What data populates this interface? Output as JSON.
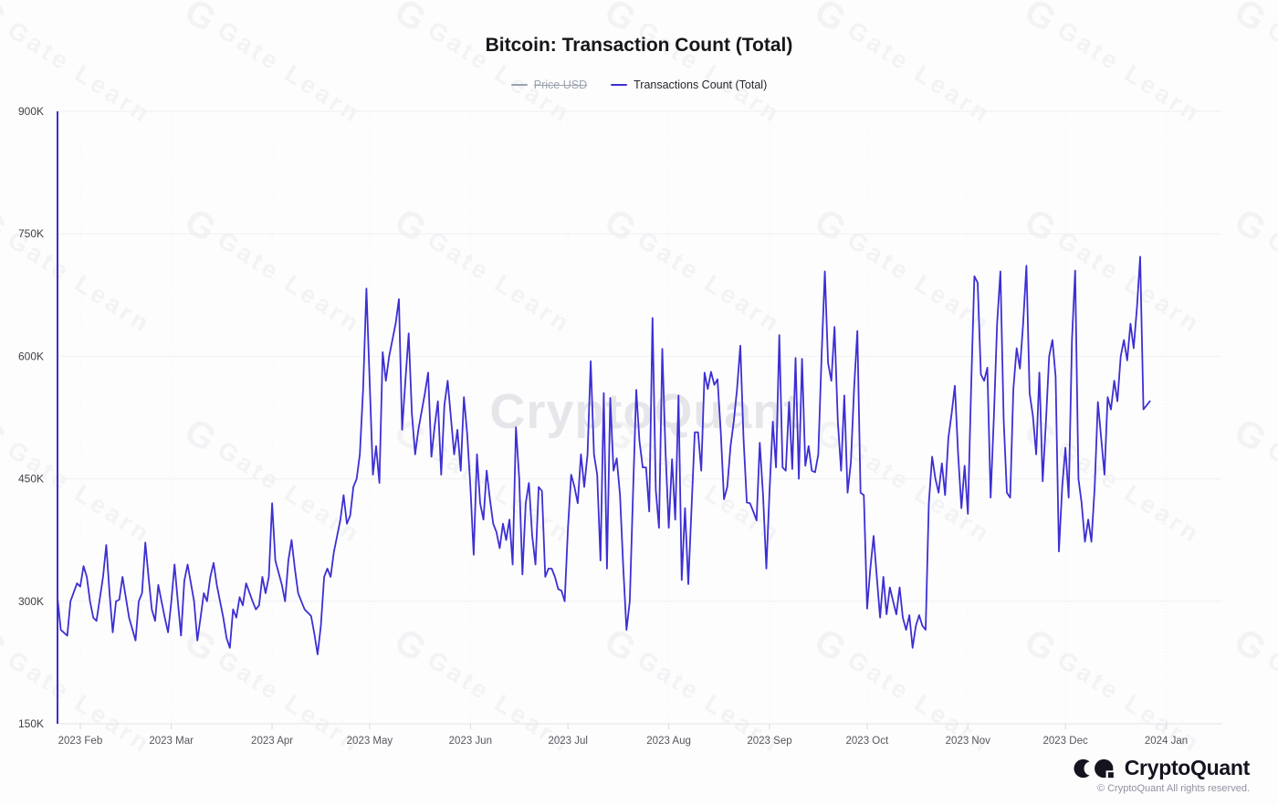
{
  "title": "Bitcoin: Transaction Count (Total)",
  "legend": {
    "price_usd": {
      "label": "Price USD",
      "color": "#9ca3af",
      "disabled": true
    },
    "tx_count": {
      "label": "Transactions Count (Total)",
      "color": "#3d2fd2",
      "disabled": false
    }
  },
  "watermark": {
    "tile_logo": "G",
    "tile_text": "Gate Learn",
    "center_text": "CryptoQuant"
  },
  "footer": {
    "brand": "CryptoQuant",
    "copyright": "© CryptoQuant All rights reserved."
  },
  "chart_data": {
    "type": "line",
    "title": "Bitcoin: Transaction Count (Total)",
    "series_name": "Transactions Count (Total)",
    "line_color": "#3d2fd2",
    "background": "#fdfdfe",
    "grid": true,
    "legend_position": "top",
    "x_unit": "days since 2023-01-25",
    "y_unit": "transactions, thousands (K)",
    "ylim": [
      150,
      900
    ],
    "y_ticks": [
      {
        "label": "150K",
        "value": 150
      },
      {
        "label": "300K",
        "value": 300
      },
      {
        "label": "450K",
        "value": 450
      },
      {
        "label": "600K",
        "value": 600
      },
      {
        "label": "750K",
        "value": 750
      },
      {
        "label": "900K",
        "value": 900
      }
    ],
    "x_ticks": [
      {
        "label": "2023 Feb",
        "day": 7
      },
      {
        "label": "2023 Mar",
        "day": 35
      },
      {
        "label": "2023 Apr",
        "day": 66
      },
      {
        "label": "2023 May",
        "day": 96
      },
      {
        "label": "2023 Jun",
        "day": 127
      },
      {
        "label": "2023 Jul",
        "day": 157
      },
      {
        "label": "2023 Aug",
        "day": 188
      },
      {
        "label": "2023 Sep",
        "day": 219
      },
      {
        "label": "2023 Oct",
        "day": 249
      },
      {
        "label": "2023 Nov",
        "day": 280
      },
      {
        "label": "2023 Dec",
        "day": 310
      },
      {
        "label": "2024 Jan",
        "day": 341
      }
    ],
    "start_spike": {
      "day": 0,
      "from": 900,
      "to": 150
    },
    "points": [
      [
        0,
        304
      ],
      [
        1,
        265
      ],
      [
        3,
        258
      ],
      [
        4,
        300
      ],
      [
        6,
        322
      ],
      [
        7,
        318
      ],
      [
        8,
        343
      ],
      [
        9,
        330
      ],
      [
        10,
        300
      ],
      [
        11,
        280
      ],
      [
        12,
        276
      ],
      [
        14,
        330
      ],
      [
        15,
        369
      ],
      [
        16,
        310
      ],
      [
        17,
        262
      ],
      [
        18,
        300
      ],
      [
        19,
        302
      ],
      [
        20,
        330
      ],
      [
        21,
        305
      ],
      [
        22,
        280
      ],
      [
        24,
        252
      ],
      [
        25,
        300
      ],
      [
        26,
        310
      ],
      [
        27,
        372
      ],
      [
        28,
        330
      ],
      [
        29,
        290
      ],
      [
        30,
        276
      ],
      [
        31,
        320
      ],
      [
        33,
        280
      ],
      [
        34,
        262
      ],
      [
        35,
        300
      ],
      [
        36,
        345
      ],
      [
        37,
        300
      ],
      [
        38,
        258
      ],
      [
        39,
        325
      ],
      [
        40,
        345
      ],
      [
        42,
        300
      ],
      [
        43,
        252
      ],
      [
        44,
        280
      ],
      [
        45,
        310
      ],
      [
        46,
        300
      ],
      [
        47,
        330
      ],
      [
        48,
        347
      ],
      [
        49,
        320
      ],
      [
        51,
        280
      ],
      [
        52,
        255
      ],
      [
        53,
        243
      ],
      [
        54,
        290
      ],
      [
        55,
        280
      ],
      [
        56,
        305
      ],
      [
        57,
        295
      ],
      [
        58,
        322
      ],
      [
        60,
        300
      ],
      [
        61,
        290
      ],
      [
        62,
        295
      ],
      [
        63,
        330
      ],
      [
        64,
        310
      ],
      [
        65,
        330
      ],
      [
        66,
        420
      ],
      [
        67,
        350
      ],
      [
        69,
        320
      ],
      [
        70,
        300
      ],
      [
        71,
        350
      ],
      [
        72,
        375
      ],
      [
        73,
        340
      ],
      [
        74,
        310
      ],
      [
        75,
        300
      ],
      [
        76,
        290
      ],
      [
        78,
        282
      ],
      [
        79,
        260
      ],
      [
        80,
        235
      ],
      [
        81,
        270
      ],
      [
        82,
        330
      ],
      [
        83,
        340
      ],
      [
        84,
        330
      ],
      [
        85,
        360
      ],
      [
        87,
        400
      ],
      [
        88,
        430
      ],
      [
        89,
        395
      ],
      [
        90,
        405
      ],
      [
        91,
        440
      ],
      [
        92,
        450
      ],
      [
        93,
        480
      ],
      [
        94,
        560
      ],
      [
        95,
        683
      ],
      [
        97,
        455
      ],
      [
        98,
        490
      ],
      [
        99,
        445
      ],
      [
        100,
        605
      ],
      [
        101,
        570
      ],
      [
        102,
        600
      ],
      [
        104,
        640
      ],
      [
        105,
        670
      ],
      [
        106,
        510
      ],
      [
        107,
        570
      ],
      [
        108,
        628
      ],
      [
        109,
        530
      ],
      [
        110,
        480
      ],
      [
        111,
        510
      ],
      [
        113,
        555
      ],
      [
        114,
        580
      ],
      [
        115,
        477
      ],
      [
        116,
        515
      ],
      [
        117,
        545
      ],
      [
        118,
        455
      ],
      [
        119,
        540
      ],
      [
        120,
        570
      ],
      [
        122,
        480
      ],
      [
        123,
        510
      ],
      [
        124,
        460
      ],
      [
        125,
        550
      ],
      [
        126,
        505
      ],
      [
        127,
        440
      ],
      [
        128,
        357
      ],
      [
        129,
        480
      ],
      [
        130,
        420
      ],
      [
        131,
        400
      ],
      [
        132,
        460
      ],
      [
        133,
        425
      ],
      [
        134,
        395
      ],
      [
        135,
        385
      ],
      [
        136,
        365
      ],
      [
        137,
        395
      ],
      [
        138,
        375
      ],
      [
        139,
        400
      ],
      [
        140,
        345
      ],
      [
        141,
        513
      ],
      [
        142,
        450
      ],
      [
        143,
        333
      ],
      [
        144,
        420
      ],
      [
        145,
        445
      ],
      [
        146,
        380
      ],
      [
        147,
        345
      ],
      [
        148,
        440
      ],
      [
        149,
        435
      ],
      [
        150,
        330
      ],
      [
        151,
        340
      ],
      [
        152,
        340
      ],
      [
        153,
        330
      ],
      [
        154,
        315
      ],
      [
        155,
        313
      ],
      [
        156,
        300
      ],
      [
        157,
        390
      ],
      [
        158,
        455
      ],
      [
        159,
        440
      ],
      [
        160,
        420
      ],
      [
        161,
        480
      ],
      [
        162,
        440
      ],
      [
        163,
        480
      ],
      [
        164,
        594
      ],
      [
        165,
        480
      ],
      [
        166,
        455
      ],
      [
        167,
        350
      ],
      [
        168,
        555
      ],
      [
        169,
        340
      ],
      [
        170,
        549
      ],
      [
        171,
        460
      ],
      [
        172,
        475
      ],
      [
        173,
        430
      ],
      [
        174,
        343
      ],
      [
        175,
        265
      ],
      [
        176,
        300
      ],
      [
        177,
        430
      ],
      [
        178,
        559
      ],
      [
        179,
        496
      ],
      [
        180,
        464
      ],
      [
        181,
        464
      ],
      [
        182,
        410
      ],
      [
        183,
        647
      ],
      [
        184,
        436
      ],
      [
        185,
        390
      ],
      [
        186,
        609
      ],
      [
        187,
        485
      ],
      [
        188,
        390
      ],
      [
        189,
        474
      ],
      [
        190,
        400
      ],
      [
        191,
        552
      ],
      [
        192,
        326
      ],
      [
        193,
        414
      ],
      [
        194,
        321
      ],
      [
        196,
        507
      ],
      [
        197,
        507
      ],
      [
        198,
        460
      ],
      [
        199,
        580
      ],
      [
        200,
        560
      ],
      [
        201,
        581
      ],
      [
        202,
        565
      ],
      [
        203,
        572
      ],
      [
        204,
        507
      ],
      [
        205,
        425
      ],
      [
        206,
        440
      ],
      [
        207,
        490
      ],
      [
        208,
        520
      ],
      [
        209,
        560
      ],
      [
        210,
        613
      ],
      [
        211,
        500
      ],
      [
        212,
        421
      ],
      [
        213,
        420
      ],
      [
        214,
        410
      ],
      [
        215,
        399
      ],
      [
        216,
        494
      ],
      [
        217,
        430
      ],
      [
        218,
        340
      ],
      [
        219,
        435
      ],
      [
        220,
        520
      ],
      [
        221,
        464
      ],
      [
        222,
        626
      ],
      [
        223,
        464
      ],
      [
        224,
        460
      ],
      [
        225,
        544
      ],
      [
        226,
        462
      ],
      [
        227,
        598
      ],
      [
        228,
        450
      ],
      [
        229,
        597
      ],
      [
        230,
        466
      ],
      [
        231,
        490
      ],
      [
        232,
        460
      ],
      [
        233,
        458
      ],
      [
        234,
        480
      ],
      [
        235,
        600
      ],
      [
        236,
        704
      ],
      [
        237,
        592
      ],
      [
        238,
        570
      ],
      [
        239,
        636
      ],
      [
        240,
        520
      ],
      [
        241,
        460
      ],
      [
        242,
        552
      ],
      [
        243,
        433
      ],
      [
        244,
        470
      ],
      [
        245,
        560
      ],
      [
        246,
        631
      ],
      [
        247,
        433
      ],
      [
        248,
        430
      ],
      [
        249,
        291
      ],
      [
        250,
        340
      ],
      [
        251,
        380
      ],
      [
        252,
        330
      ],
      [
        253,
        280
      ],
      [
        254,
        330
      ],
      [
        255,
        284
      ],
      [
        256,
        317
      ],
      [
        257,
        300
      ],
      [
        258,
        284
      ],
      [
        259,
        317
      ],
      [
        260,
        280
      ],
      [
        261,
        265
      ],
      [
        262,
        283
      ],
      [
        263,
        243
      ],
      [
        264,
        270
      ],
      [
        265,
        283
      ],
      [
        266,
        270
      ],
      [
        267,
        265
      ],
      [
        268,
        420
      ],
      [
        269,
        477
      ],
      [
        270,
        450
      ],
      [
        271,
        433
      ],
      [
        272,
        469
      ],
      [
        273,
        430
      ],
      [
        274,
        500
      ],
      [
        275,
        530
      ],
      [
        276,
        564
      ],
      [
        277,
        480
      ],
      [
        278,
        414
      ],
      [
        279,
        466
      ],
      [
        280,
        407
      ],
      [
        281,
        560
      ],
      [
        282,
        698
      ],
      [
        283,
        690
      ],
      [
        284,
        578
      ],
      [
        285,
        570
      ],
      [
        286,
        586
      ],
      [
        287,
        427
      ],
      [
        288,
        527
      ],
      [
        289,
        640
      ],
      [
        290,
        704
      ],
      [
        291,
        522
      ],
      [
        292,
        433
      ],
      [
        293,
        427
      ],
      [
        294,
        560
      ],
      [
        295,
        610
      ],
      [
        296,
        585
      ],
      [
        297,
        640
      ],
      [
        298,
        711
      ],
      [
        299,
        555
      ],
      [
        300,
        527
      ],
      [
        301,
        480
      ],
      [
        302,
        580
      ],
      [
        303,
        447
      ],
      [
        304,
        520
      ],
      [
        305,
        600
      ],
      [
        306,
        620
      ],
      [
        307,
        575
      ],
      [
        308,
        361
      ],
      [
        309,
        440
      ],
      [
        310,
        488
      ],
      [
        311,
        427
      ],
      [
        312,
        620
      ],
      [
        313,
        705
      ],
      [
        314,
        450
      ],
      [
        315,
        420
      ],
      [
        316,
        373
      ],
      [
        317,
        400
      ],
      [
        318,
        373
      ],
      [
        319,
        440
      ],
      [
        320,
        544
      ],
      [
        321,
        500
      ],
      [
        322,
        455
      ],
      [
        323,
        550
      ],
      [
        324,
        535
      ],
      [
        325,
        570
      ],
      [
        326,
        545
      ],
      [
        327,
        600
      ],
      [
        328,
        620
      ],
      [
        329,
        595
      ],
      [
        330,
        640
      ],
      [
        331,
        610
      ],
      [
        332,
        660
      ],
      [
        333,
        722
      ],
      [
        334,
        535
      ],
      [
        335,
        540
      ],
      [
        336,
        545
      ]
    ]
  }
}
